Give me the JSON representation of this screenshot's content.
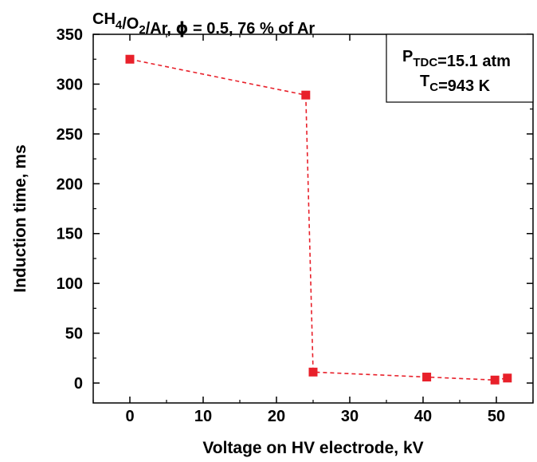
{
  "chart_data": {
    "type": "line",
    "title": {
      "parts": [
        {
          "text": "CH"
        },
        {
          "text": "4",
          "sub": true
        },
        {
          "text": "/O"
        },
        {
          "text": "2",
          "sub": true
        },
        {
          "text": "/Ar,  "
        },
        {
          "text": "ϕ",
          "symbol": true
        },
        {
          "text": " = 0.5, 76 % of Ar"
        }
      ]
    },
    "xlabel": "Voltage on HV electrode, kV",
    "ylabel": "Induction time, ms",
    "xlim": [
      -5,
      55
    ],
    "ylim": [
      -20,
      350
    ],
    "x_ticks": [
      0,
      10,
      20,
      30,
      40,
      50
    ],
    "y_ticks": [
      0,
      50,
      100,
      150,
      200,
      250,
      300,
      350
    ],
    "series": [
      {
        "color": "#e8202a",
        "line_style": "dashed",
        "marker": "square",
        "points": [
          {
            "x": 0,
            "y": 325
          },
          {
            "x": 24,
            "y": 289
          },
          {
            "x": 25,
            "y": 11
          },
          {
            "x": 40.5,
            "y": 6
          },
          {
            "x": 49.8,
            "y": 3
          },
          {
            "x": 51.5,
            "y": 5
          }
        ]
      }
    ],
    "annotation": {
      "lines": [
        {
          "parts": [
            {
              "text": "P"
            },
            {
              "text": "TDC",
              "sub": true
            },
            {
              "text": "=15.1 atm"
            }
          ]
        },
        {
          "parts": [
            {
              "text": "T"
            },
            {
              "text": "C",
              "sub": true
            },
            {
              "text": "=943 K"
            }
          ]
        }
      ]
    },
    "grid": false,
    "legend": false
  }
}
